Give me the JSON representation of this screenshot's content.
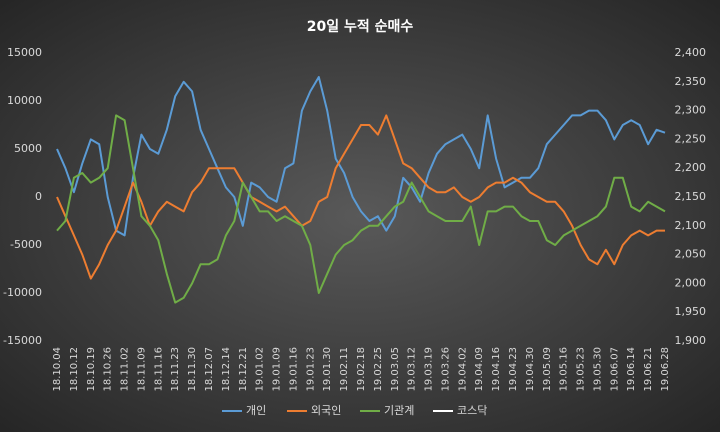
{
  "chart_data": {
    "type": "line",
    "title": "20일 누적 순매수",
    "categories": [
      "18.10.04",
      null,
      "18.10.12",
      null,
      "18.10.19",
      null,
      "18.10.26",
      null,
      "18.11.02",
      null,
      "18.11.09",
      null,
      "18.11.16",
      null,
      "18.11.23",
      null,
      "18.11.30",
      null,
      "18.12.07",
      null,
      "18.12.14",
      null,
      "18.12.21",
      null,
      "19.01.02",
      null,
      "19.01.09",
      null,
      "19.01.16",
      null,
      "19.01.23",
      null,
      "19.01.30",
      null,
      "19.02.11",
      null,
      "19.02.18",
      null,
      "19.02.25",
      null,
      "19.03.05",
      null,
      "19.03.12",
      null,
      "19.03.19",
      null,
      "19.03.26",
      null,
      "19.04.02",
      null,
      "19.04.09",
      null,
      "19.04.16",
      null,
      "19.04.23",
      null,
      "19.04.30",
      null,
      "19.05.09",
      null,
      "19.05.16",
      null,
      "19.05.23",
      null,
      "19.05.30",
      null,
      "19.06.07",
      null,
      "19.06.14",
      null,
      "19.06.21",
      null,
      "19.06.28"
    ],
    "series": [
      {
        "name": "개인",
        "color": "#5b9bd5",
        "values": [
          5000,
          3000,
          500,
          3500,
          6000,
          5500,
          0,
          -3500,
          -4000,
          2000,
          6500,
          5000,
          4500,
          7000,
          10500,
          12000,
          11000,
          7000,
          5000,
          3000,
          1000,
          0,
          -3000,
          1500,
          1000,
          0,
          -500,
          3000,
          3500,
          9000,
          11000,
          12500,
          9000,
          4000,
          2500,
          0,
          -1500,
          -2500,
          -2000,
          -3500,
          -2000,
          2000,
          1000,
          -500,
          2500,
          4500,
          5500,
          6000,
          6500,
          5000,
          3000,
          8500,
          4000,
          1000,
          1500,
          2000,
          2000,
          3000,
          5500,
          6500,
          7500,
          8500,
          8500,
          9000,
          9000,
          8000,
          6000,
          7500,
          8000,
          7500,
          5500,
          7000,
          6700
        ]
      },
      {
        "name": "외국인",
        "color": "#ed7d31",
        "values": [
          0,
          -2000,
          -4000,
          -6000,
          -8500,
          -7000,
          -5000,
          -3500,
          -1000,
          1500,
          -500,
          -3000,
          -1500,
          -500,
          -1000,
          -1500,
          500,
          1500,
          3000,
          3000,
          3000,
          3000,
          1500,
          0,
          -500,
          -1000,
          -1500,
          -1000,
          -2000,
          -3000,
          -2500,
          -500,
          0,
          3000,
          4500,
          6000,
          7500,
          7500,
          6500,
          8500,
          6000,
          3500,
          3000,
          2000,
          1000,
          500,
          500,
          1000,
          0,
          -500,
          0,
          1000,
          1500,
          1500,
          2000,
          1500,
          500,
          0,
          -500,
          -500,
          -1500,
          -3000,
          -5000,
          -6500,
          -7000,
          -5500,
          -7000,
          -5000,
          -4000,
          -3500,
          -4000,
          -3500,
          -3500
        ]
      },
      {
        "name": "기관계",
        "color": "#70ad47",
        "values": [
          -3500,
          -2500,
          2000,
          2500,
          1500,
          2000,
          3000,
          8500,
          8000,
          3000,
          -2000,
          -3000,
          -4500,
          -8000,
          -11000,
          -10500,
          -9000,
          -7000,
          -7000,
          -6500,
          -4000,
          -2500,
          1500,
          0,
          -1500,
          -1500,
          -2500,
          -2000,
          -2500,
          -3000,
          -5000,
          -10000,
          -8000,
          -6000,
          -5000,
          -4500,
          -3500,
          -3000,
          -3000,
          -2000,
          -1000,
          -500,
          1500,
          0,
          -1500,
          -2000,
          -2500,
          -2500,
          -2500,
          -1000,
          -5000,
          -1500,
          -1500,
          -1000,
          -1000,
          -2000,
          -2500,
          -2500,
          -4500,
          -5000,
          -4000,
          -3500,
          -3000,
          -2500,
          -2000,
          -1000,
          2000,
          2000,
          -1000,
          -1500,
          -500,
          -1000,
          -1500
        ]
      },
      {
        "name": "코스닥",
        "color": "#ffffff",
        "axis": "y2",
        "values": [
          null,
          null,
          null,
          null,
          null,
          null,
          null,
          null,
          null,
          null,
          null,
          null,
          null,
          null,
          null,
          null,
          null,
          null,
          null,
          null,
          null,
          null,
          null,
          null,
          null,
          null,
          null,
          null,
          null,
          null,
          null,
          null,
          null,
          null,
          null,
          null,
          null,
          null,
          null,
          null,
          null,
          null,
          null,
          null,
          null,
          null,
          null,
          null,
          null,
          null,
          null,
          null,
          null,
          null,
          null,
          null,
          null,
          null,
          null,
          null,
          null,
          null,
          null,
          null,
          null,
          null,
          null,
          null,
          null,
          null,
          null,
          null,
          null
        ]
      }
    ],
    "ylim": [
      -15000,
      15000
    ],
    "yticks": [
      -15000,
      -10000,
      -5000,
      0,
      5000,
      10000,
      15000
    ],
    "y2lim": [
      1900,
      2400
    ],
    "y2ticks": [
      {
        "value": 1900,
        "label": "1,900"
      },
      {
        "value": 1950,
        "label": "1,950"
      },
      {
        "value": 2000,
        "label": "2,000"
      },
      {
        "value": 2050,
        "label": "2,050"
      },
      {
        "value": 2100,
        "label": "2,100"
      },
      {
        "value": 2150,
        "label": "2,150"
      },
      {
        "value": 2200,
        "label": "2,200"
      },
      {
        "value": 2250,
        "label": "2,250"
      },
      {
        "value": 2300,
        "label": "2,300"
      },
      {
        "value": 2350,
        "label": "2,350"
      },
      {
        "value": 2400,
        "label": "2,400"
      }
    ],
    "grid": false,
    "legend": "bottom"
  }
}
